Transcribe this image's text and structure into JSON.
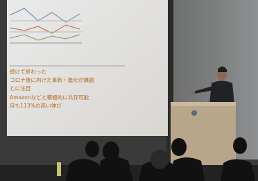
{
  "slide": {
    "lines": [
      "続けて終わった",
      "コロナ後に向けた革新・進化が課題",
      "とに注目",
      "Amazonなどと積極的に共存可能",
      "月も113%の高い伸び"
    ]
  }
}
